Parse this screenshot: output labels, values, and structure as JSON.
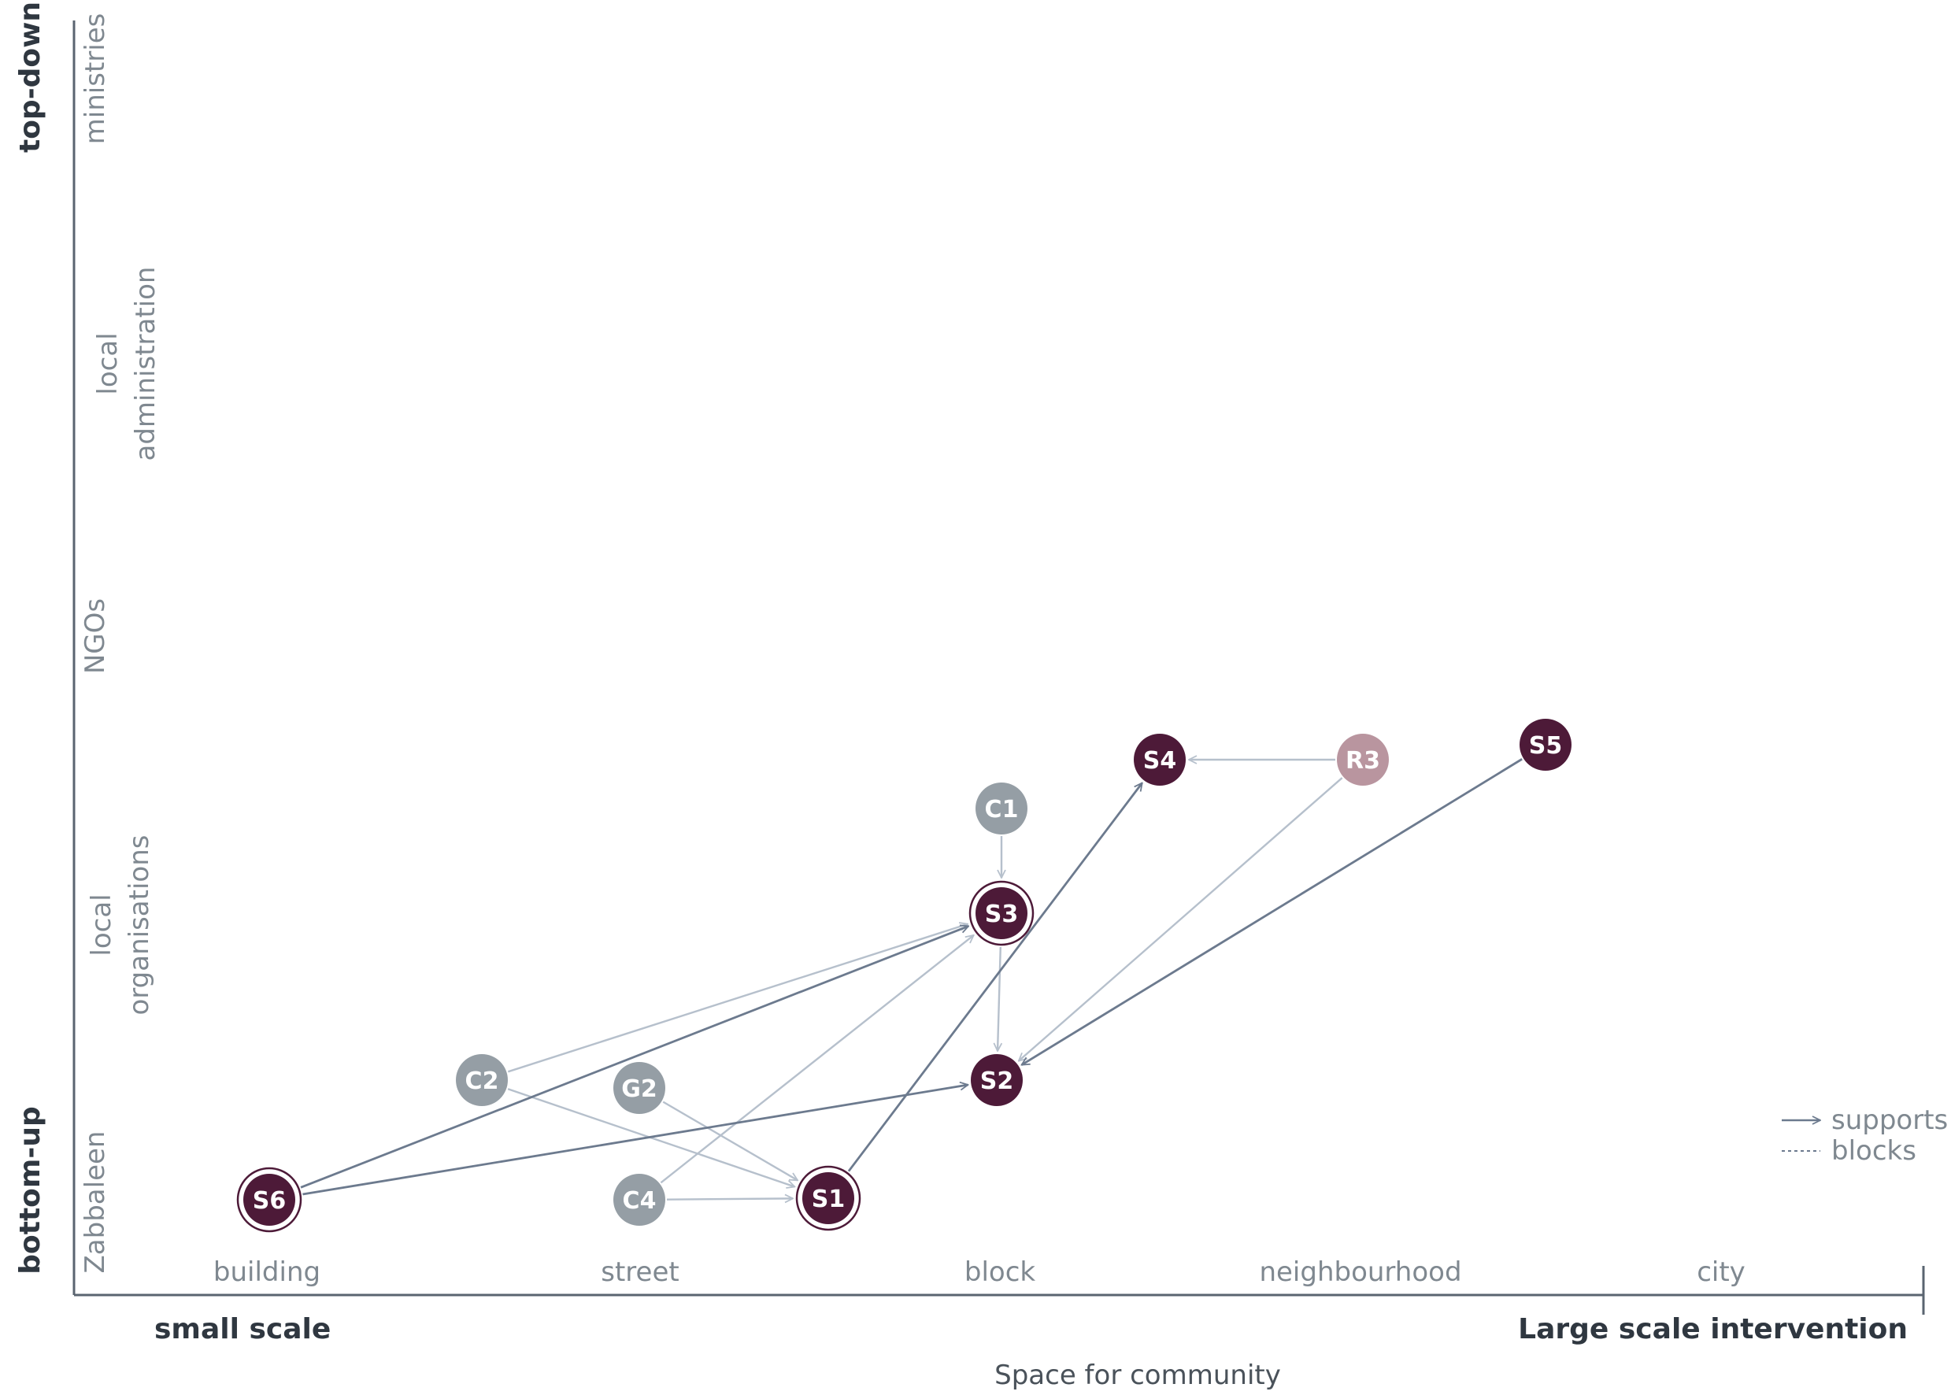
{
  "x_axis": {
    "categories": [
      "building",
      "street",
      "block",
      "neighbourhood",
      "city"
    ],
    "low_label": "small scale",
    "high_label": "Large scale intervention",
    "caption": "Space for community"
  },
  "y_axis": {
    "top_label": "top-down",
    "bottom_label": "bottom-up",
    "categories": [
      {
        "lines": [
          "ministries"
        ]
      },
      {
        "lines": [
          "local",
          "administration"
        ]
      },
      {
        "lines": [
          "NGOs"
        ]
      },
      {
        "lines": [
          "local",
          "organisations"
        ]
      },
      {
        "lines": [
          "Zabbaleen"
        ]
      }
    ]
  },
  "legend": {
    "supports": "supports",
    "blocks": "blocks"
  },
  "colors": {
    "dark_node": "#4d1a38",
    "grey_node": "#959ea5",
    "rose_node": "#b9959f",
    "strong_edge": "#6c7a8e",
    "light_edge": "#b6c0cc",
    "axis": "#5a6470"
  },
  "nodes": [
    {
      "id": "S6",
      "kind": "dark",
      "ring": true
    },
    {
      "id": "S1",
      "kind": "dark",
      "ring": true
    },
    {
      "id": "S3",
      "kind": "dark",
      "ring": true
    },
    {
      "id": "S2",
      "kind": "dark",
      "ring": false
    },
    {
      "id": "S4",
      "kind": "dark",
      "ring": false
    },
    {
      "id": "S5",
      "kind": "dark",
      "ring": false
    },
    {
      "id": "R3",
      "kind": "rose",
      "ring": false
    },
    {
      "id": "C1",
      "kind": "grey",
      "ring": false
    },
    {
      "id": "C2",
      "kind": "grey",
      "ring": false
    },
    {
      "id": "G2",
      "kind": "grey",
      "ring": false
    },
    {
      "id": "C4",
      "kind": "grey",
      "ring": false
    }
  ],
  "edges": [
    {
      "from": "C2",
      "to": "S3",
      "strength": "light"
    },
    {
      "from": "C2",
      "to": "S1",
      "strength": "light"
    },
    {
      "from": "G2",
      "to": "S1",
      "strength": "light"
    },
    {
      "from": "C4",
      "to": "S1",
      "strength": "light"
    },
    {
      "from": "C4",
      "to": "S3",
      "strength": "light"
    },
    {
      "from": "C1",
      "to": "S3",
      "strength": "light"
    },
    {
      "from": "S3",
      "to": "S2",
      "strength": "light"
    },
    {
      "from": "R3",
      "to": "S4",
      "strength": "light"
    },
    {
      "from": "R3",
      "to": "S2",
      "strength": "light"
    },
    {
      "from": "S6",
      "to": "S3",
      "strength": "strong"
    },
    {
      "from": "S6",
      "to": "S2",
      "strength": "strong"
    },
    {
      "from": "S1",
      "to": "S4",
      "strength": "strong"
    },
    {
      "from": "S5",
      "to": "S2",
      "strength": "strong"
    }
  ]
}
